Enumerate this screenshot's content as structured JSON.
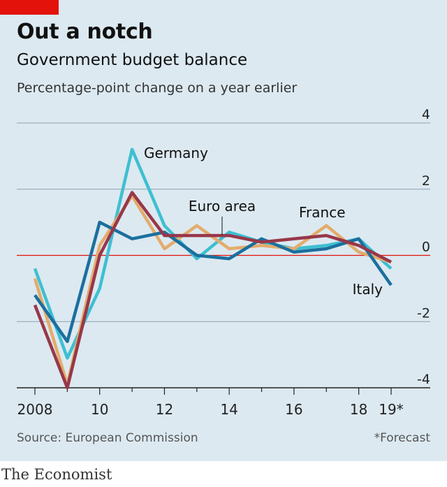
{
  "header": {
    "title": "Out a notch",
    "subtitle": "Government budget balance",
    "unit_note": "Percentage-point change on a year earlier"
  },
  "footer": {
    "source": "Source: European Commission",
    "footnote": "*Forecast",
    "brand": "The Economist"
  },
  "colors": {
    "background": "#dce9f1",
    "accent_red": "#e3120b",
    "zero_line": "#e3120b",
    "grid": "#8fa3b0"
  },
  "chart_data": {
    "type": "line",
    "title": "Government budget balance",
    "subtitle": "Percentage-point change on a year earlier",
    "x": [
      2008,
      2009,
      2010,
      2011,
      2012,
      2013,
      2014,
      2015,
      2016,
      2017,
      2018,
      2019
    ],
    "x_tick_values": [
      2008,
      2010,
      2012,
      2014,
      2016,
      2018,
      2019
    ],
    "x_tick_labels": [
      "2008",
      "10",
      "12",
      "14",
      "16",
      "18",
      "19*"
    ],
    "ylim": [
      -4,
      4
    ],
    "y_ticks": [
      4,
      2,
      0,
      -2,
      -4
    ],
    "y_tick_labels": [
      "4",
      "2",
      "0",
      "-2",
      "-4"
    ],
    "grid": true,
    "series": [
      {
        "name": "Germany",
        "color": "#3ebfd1",
        "values": [
          -0.4,
          -3.1,
          -1.0,
          3.2,
          0.9,
          -0.1,
          0.7,
          0.4,
          0.2,
          0.3,
          0.5,
          -0.4
        ]
      },
      {
        "name": "France",
        "color": "#e3ac6c",
        "values": [
          -0.7,
          -3.9,
          0.3,
          1.8,
          0.2,
          0.9,
          0.2,
          0.3,
          0.2,
          0.9,
          0.1,
          -0.2
        ]
      },
      {
        "name": "Italy",
        "color": "#1b6f9e",
        "values": [
          -1.2,
          -2.6,
          1.0,
          0.5,
          0.7,
          0.0,
          -0.1,
          0.5,
          0.1,
          0.2,
          0.5,
          -0.9
        ]
      },
      {
        "name": "Euro area",
        "color": "#98374a",
        "values": [
          -1.5,
          -4.0,
          0.0,
          1.9,
          0.6,
          0.6,
          0.6,
          0.4,
          0.5,
          0.6,
          0.3,
          -0.2
        ]
      }
    ],
    "annotations": [
      "Germany",
      "Euro area",
      "France",
      "Italy"
    ]
  }
}
